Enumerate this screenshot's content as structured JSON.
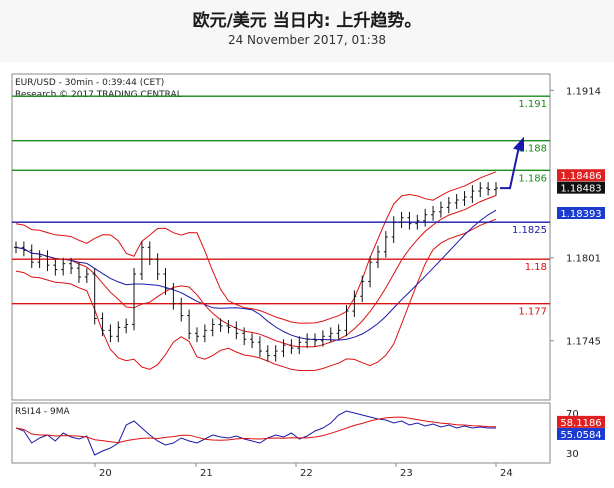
{
  "header": {
    "title": "欧元/美元 当日内: 上升趋势。",
    "subtitle": "24 November 2017, 01:38"
  },
  "chart_data": {
    "type": "candlestick",
    "symbol_line": "EUR/USD - 30min - 0:39:44 (CET)",
    "copyright": "Research © 2017 TRADING CENTRAL",
    "price_axis_ticks": [
      1.1914,
      1.1801,
      1.1745
    ],
    "x_tick_labels": [
      "20",
      "21",
      "22",
      "23",
      "24"
    ],
    "ylim": [
      1.1705,
      1.1925
    ],
    "levels": [
      {
        "label": "1.191",
        "value": 1.191,
        "color": "#1a8a1a"
      },
      {
        "label": "1.188",
        "value": 1.188,
        "color": "#1a8a1a"
      },
      {
        "label": "1.186",
        "value": 1.186,
        "color": "#1a8a1a"
      },
      {
        "label": "1.1825",
        "value": 1.1825,
        "color": "#1a1aaa"
      },
      {
        "label": "1.18",
        "value": 1.18,
        "color": "#dd1111"
      },
      {
        "label": "1.177",
        "value": 1.177,
        "color": "#dd1111"
      }
    ],
    "price_tags": [
      {
        "label": "1.18486",
        "value": 1.18486,
        "color": "#e02020"
      },
      {
        "label": "1.18483",
        "value": 1.18483,
        "color": "#111111"
      },
      {
        "label": "1.18393",
        "value": 1.18393,
        "color": "#1a3ad0"
      }
    ],
    "close_path": [
      1.1808,
      1.1806,
      1.1798,
      1.1802,
      1.1796,
      1.1793,
      1.1797,
      1.1794,
      1.1788,
      1.179,
      1.176,
      1.1752,
      1.1748,
      1.1754,
      1.1756,
      1.179,
      1.1808,
      1.18,
      1.179,
      1.178,
      1.177,
      1.1762,
      1.175,
      1.1748,
      1.1752,
      1.1756,
      1.1755,
      1.1754,
      1.175,
      1.1746,
      1.1744,
      1.1738,
      1.1735,
      1.1738,
      1.1742,
      1.174,
      1.1744,
      1.1746,
      1.1745,
      1.1748,
      1.175,
      1.1752,
      1.1765,
      1.1775,
      1.1785,
      1.1798,
      1.1805,
      1.1815,
      1.1825,
      1.1828,
      1.1824,
      1.1826,
      1.183,
      1.1832,
      1.1835,
      1.1838,
      1.184,
      1.1842,
      1.1846,
      1.1848,
      1.1847,
      1.1848
    ],
    "forecast_arrow": [
      1.1848,
      1.188
    ],
    "rsi": {
      "label": "RSI14 - 9MA",
      "ticks": [
        70,
        30
      ],
      "ylim": [
        20,
        80
      ],
      "value_tags": [
        {
          "label": "58.1186",
          "value": 58.1186,
          "color": "#e02020"
        },
        {
          "label": "55.0584",
          "value": 55.0584,
          "color": "#1a3ad0"
        }
      ],
      "values": [
        55,
        52,
        40,
        45,
        48,
        42,
        50,
        46,
        44,
        47,
        28,
        32,
        35,
        40,
        58,
        62,
        55,
        48,
        42,
        38,
        40,
        45,
        42,
        40,
        44,
        48,
        46,
        45,
        47,
        44,
        42,
        40,
        45,
        48,
        46,
        50,
        44,
        47,
        52,
        55,
        60,
        68,
        72,
        70,
        68,
        66,
        64,
        63,
        60,
        62,
        58,
        60,
        57,
        59,
        56,
        58,
        55,
        57,
        55,
        56,
        55,
        55
      ]
    }
  }
}
